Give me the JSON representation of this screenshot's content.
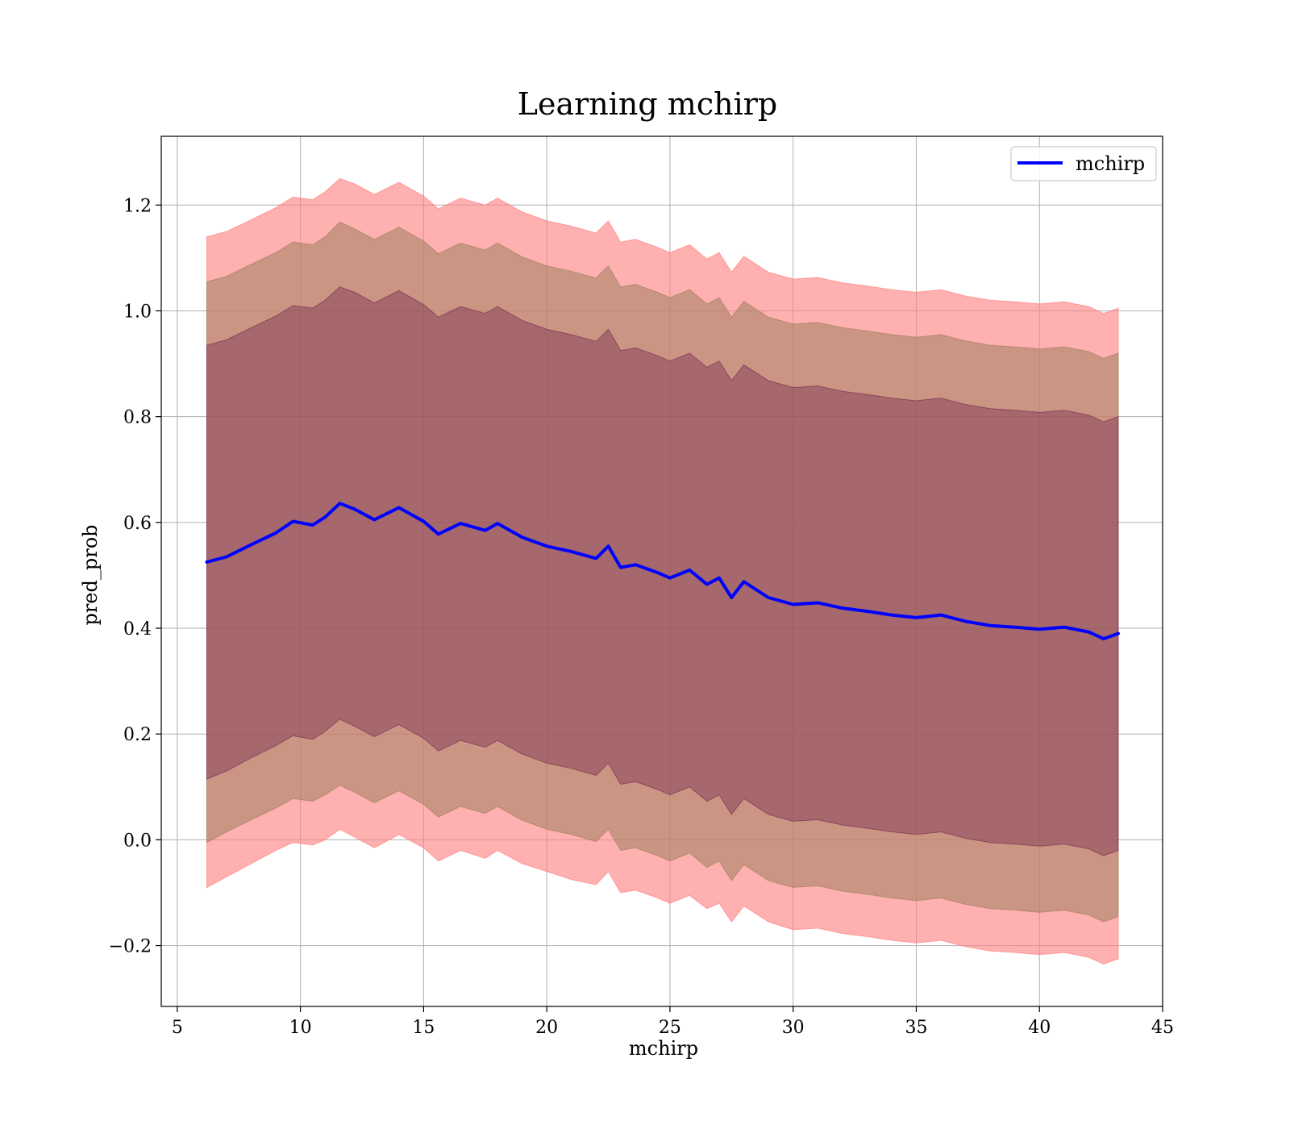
{
  "chart_data": {
    "type": "area",
    "title": "Learning mchirp",
    "xlabel": "mchirp",
    "ylabel": "pred_prob",
    "xlim": [
      4.35,
      45
    ],
    "ylim": [
      -0.315,
      1.33
    ],
    "xticks": [
      5,
      10,
      15,
      20,
      25,
      30,
      35,
      40,
      45
    ],
    "xtick_labels": [
      "5",
      "10",
      "15",
      "20",
      "25",
      "30",
      "35",
      "40",
      "45"
    ],
    "yticks": [
      -0.2,
      0.0,
      0.2,
      0.4,
      0.6,
      0.8,
      1.0,
      1.2
    ],
    "ytick_labels": [
      "−0.2",
      "0.0",
      "0.2",
      "0.4",
      "0.6",
      "0.8",
      "1.0",
      "1.2"
    ],
    "grid": true,
    "legend_position": "top-right",
    "x": [
      6.2,
      7.0,
      8.0,
      9.0,
      9.7,
      10.5,
      11.0,
      11.6,
      12.2,
      13.0,
      14.0,
      15.0,
      15.6,
      16.5,
      17.5,
      18.0,
      19.0,
      20.0,
      21.0,
      22.0,
      22.5,
      23.0,
      23.6,
      24.5,
      25.0,
      25.8,
      26.5,
      27.0,
      27.5,
      28.0,
      29.0,
      30.0,
      31.0,
      32.0,
      33.0,
      34.0,
      35.0,
      36.0,
      37.0,
      38.0,
      39.0,
      40.0,
      41.0,
      42.0,
      42.6,
      43.2
    ],
    "series": [
      {
        "name": "mchirp",
        "color": "#0000ff",
        "values": [
          0.525,
          0.535,
          0.558,
          0.58,
          0.602,
          0.595,
          0.61,
          0.636,
          0.625,
          0.605,
          0.628,
          0.602,
          0.578,
          0.598,
          0.585,
          0.598,
          0.572,
          0.555,
          0.545,
          0.532,
          0.555,
          0.515,
          0.52,
          0.505,
          0.495,
          0.51,
          0.483,
          0.495,
          0.458,
          0.488,
          0.458,
          0.445,
          0.448,
          0.438,
          0.432,
          0.425,
          0.42,
          0.425,
          0.413,
          0.405,
          0.402,
          0.398,
          0.402,
          0.393,
          0.38,
          0.39
        ]
      }
    ],
    "bands": [
      {
        "name": "outer",
        "color": "#ff8080",
        "opacity": 0.62,
        "lower": [
          -0.09,
          -0.07,
          -0.045,
          -0.02,
          -0.005,
          -0.01,
          0.0,
          0.02,
          0.005,
          -0.015,
          0.01,
          -0.015,
          -0.04,
          -0.02,
          -0.035,
          -0.02,
          -0.045,
          -0.06,
          -0.075,
          -0.085,
          -0.06,
          -0.1,
          -0.095,
          -0.11,
          -0.12,
          -0.105,
          -0.13,
          -0.12,
          -0.155,
          -0.125,
          -0.155,
          -0.17,
          -0.167,
          -0.177,
          -0.183,
          -0.19,
          -0.195,
          -0.19,
          -0.202,
          -0.21,
          -0.213,
          -0.217,
          -0.213,
          -0.222,
          -0.235,
          -0.225
        ],
        "upper": [
          1.14,
          1.15,
          1.172,
          1.195,
          1.215,
          1.21,
          1.225,
          1.25,
          1.24,
          1.22,
          1.243,
          1.217,
          1.193,
          1.213,
          1.2,
          1.213,
          1.187,
          1.17,
          1.16,
          1.147,
          1.17,
          1.13,
          1.135,
          1.12,
          1.11,
          1.125,
          1.098,
          1.11,
          1.073,
          1.103,
          1.073,
          1.06,
          1.063,
          1.053,
          1.047,
          1.04,
          1.035,
          1.04,
          1.028,
          1.02,
          1.017,
          1.013,
          1.017,
          1.008,
          0.995,
          1.005
        ]
      },
      {
        "name": "middle",
        "color": "#a08060",
        "opacity": 0.55,
        "lower": [
          -0.005,
          0.015,
          0.038,
          0.06,
          0.078,
          0.073,
          0.085,
          0.103,
          0.09,
          0.07,
          0.093,
          0.067,
          0.043,
          0.063,
          0.05,
          0.063,
          0.037,
          0.02,
          0.01,
          -0.003,
          0.02,
          -0.02,
          -0.015,
          -0.03,
          -0.04,
          -0.025,
          -0.052,
          -0.04,
          -0.077,
          -0.047,
          -0.077,
          -0.09,
          -0.087,
          -0.097,
          -0.103,
          -0.11,
          -0.115,
          -0.11,
          -0.122,
          -0.13,
          -0.133,
          -0.137,
          -0.133,
          -0.142,
          -0.155,
          -0.145
        ],
        "upper": [
          1.055,
          1.065,
          1.088,
          1.11,
          1.13,
          1.125,
          1.14,
          1.168,
          1.155,
          1.135,
          1.158,
          1.132,
          1.108,
          1.128,
          1.115,
          1.128,
          1.102,
          1.085,
          1.075,
          1.062,
          1.085,
          1.045,
          1.05,
          1.035,
          1.025,
          1.04,
          1.013,
          1.025,
          0.988,
          1.018,
          0.988,
          0.975,
          0.978,
          0.968,
          0.962,
          0.955,
          0.95,
          0.955,
          0.943,
          0.935,
          0.932,
          0.928,
          0.932,
          0.923,
          0.91,
          0.92
        ]
      },
      {
        "name": "inner",
        "color": "#7a3050",
        "opacity": 0.45,
        "lower": [
          0.115,
          0.13,
          0.155,
          0.178,
          0.197,
          0.19,
          0.205,
          0.228,
          0.215,
          0.195,
          0.218,
          0.192,
          0.168,
          0.188,
          0.175,
          0.188,
          0.162,
          0.145,
          0.135,
          0.122,
          0.145,
          0.105,
          0.11,
          0.095,
          0.085,
          0.1,
          0.073,
          0.085,
          0.048,
          0.078,
          0.048,
          0.035,
          0.038,
          0.028,
          0.022,
          0.015,
          0.01,
          0.015,
          0.003,
          -0.005,
          -0.008,
          -0.012,
          -0.008,
          -0.017,
          -0.03,
          -0.02
        ],
        "upper": [
          0.935,
          0.945,
          0.968,
          0.99,
          1.01,
          1.005,
          1.02,
          1.045,
          1.035,
          1.015,
          1.038,
          1.012,
          0.988,
          1.008,
          0.995,
          1.008,
          0.982,
          0.965,
          0.955,
          0.942,
          0.965,
          0.925,
          0.93,
          0.915,
          0.905,
          0.92,
          0.893,
          0.905,
          0.868,
          0.898,
          0.868,
          0.855,
          0.858,
          0.848,
          0.842,
          0.835,
          0.83,
          0.835,
          0.823,
          0.815,
          0.812,
          0.808,
          0.812,
          0.803,
          0.79,
          0.8
        ]
      }
    ]
  }
}
